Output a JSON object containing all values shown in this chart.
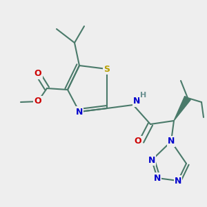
{
  "background_color": "#eeeeee",
  "bond_color": "#4a7a6a",
  "bond_width": 1.5,
  "atom_colors": {
    "S": "#b8a000",
    "N": "#0000cc",
    "O": "#cc0000",
    "H": "#6a9090",
    "C": "#4a7a6a"
  },
  "font_size_atom": 9,
  "font_size_small": 8,
  "figsize": [
    3.0,
    3.0
  ],
  "dpi": 100
}
